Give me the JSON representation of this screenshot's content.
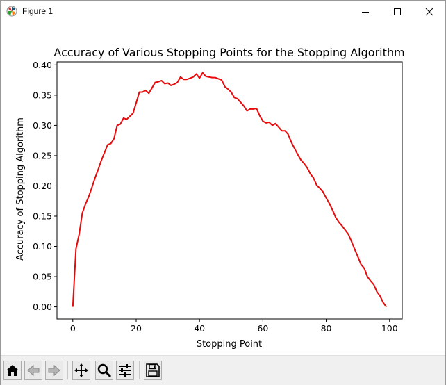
{
  "window": {
    "title": "Figure 1",
    "app_icon": "matplotlib-icon",
    "controls": [
      "minimize-icon",
      "maximize-icon",
      "close-icon"
    ]
  },
  "toolbar": {
    "buttons": [
      {
        "name": "home-button",
        "icon": "home-icon"
      },
      {
        "name": "back-button",
        "icon": "back-arrow-icon"
      },
      {
        "name": "forward-button",
        "icon": "forward-arrow-icon"
      },
      {
        "name": "pan-button",
        "icon": "move-icon"
      },
      {
        "name": "zoom-button",
        "icon": "magnifier-icon"
      },
      {
        "name": "configure-subplots-button",
        "icon": "sliders-icon"
      },
      {
        "name": "save-button",
        "icon": "floppy-disk-icon"
      }
    ]
  },
  "chart_data": {
    "type": "line",
    "title": "Accuracy of Various Stopping Points for the Stopping Algorithm",
    "xlabel": "Stopping Point",
    "ylabel": "Accuracy of Stopping Algorithm",
    "xlim": [
      -5,
      104
    ],
    "ylim": [
      -0.02,
      0.405
    ],
    "xticks": [
      "0",
      "20",
      "40",
      "60",
      "80",
      "100"
    ],
    "yticks": [
      "0.00",
      "0.05",
      "0.10",
      "0.15",
      "0.20",
      "0.25",
      "0.30",
      "0.35",
      "0.40"
    ],
    "grid": false,
    "series": [
      {
        "name": "",
        "color": "#e8090a",
        "x": [
          0,
          1,
          2,
          3,
          4,
          5,
          6,
          7,
          8,
          9,
          10,
          11,
          12,
          13,
          14,
          15,
          16,
          17,
          18,
          19,
          20,
          21,
          22,
          23,
          24,
          25,
          26,
          27,
          28,
          29,
          30,
          31,
          32,
          33,
          34,
          35,
          36,
          37,
          38,
          39,
          40,
          41,
          42,
          43,
          44,
          45,
          46,
          47,
          48,
          49,
          50,
          51,
          52,
          53,
          54,
          55,
          56,
          57,
          58,
          59,
          60,
          61,
          62,
          63,
          64,
          65,
          66,
          67,
          68,
          69,
          70,
          71,
          72,
          73,
          74,
          75,
          76,
          77,
          78,
          79,
          80,
          81,
          82,
          83,
          84,
          85,
          86,
          87,
          88,
          89,
          90,
          91,
          92,
          93,
          94,
          95,
          96,
          97,
          98,
          99
        ],
        "y": [
          0.0,
          0.096,
          0.12,
          0.155,
          0.17,
          0.182,
          0.197,
          0.213,
          0.227,
          0.242,
          0.255,
          0.268,
          0.27,
          0.278,
          0.3,
          0.302,
          0.312,
          0.31,
          0.315,
          0.32,
          0.337,
          0.355,
          0.355,
          0.358,
          0.353,
          0.362,
          0.371,
          0.372,
          0.374,
          0.369,
          0.37,
          0.366,
          0.368,
          0.371,
          0.38,
          0.376,
          0.376,
          0.378,
          0.38,
          0.385,
          0.378,
          0.387,
          0.381,
          0.38,
          0.379,
          0.379,
          0.377,
          0.375,
          0.364,
          0.36,
          0.355,
          0.346,
          0.344,
          0.338,
          0.332,
          0.324,
          0.327,
          0.327,
          0.328,
          0.316,
          0.307,
          0.304,
          0.305,
          0.3,
          0.303,
          0.297,
          0.291,
          0.291,
          0.285,
          0.272,
          0.262,
          0.252,
          0.243,
          0.237,
          0.23,
          0.22,
          0.213,
          0.201,
          0.196,
          0.19,
          0.18,
          0.171,
          0.16,
          0.148,
          0.14,
          0.134,
          0.127,
          0.12,
          0.108,
          0.095,
          0.083,
          0.07,
          0.064,
          0.05,
          0.043,
          0.037,
          0.025,
          0.018,
          0.007,
          0.0
        ]
      }
    ]
  }
}
